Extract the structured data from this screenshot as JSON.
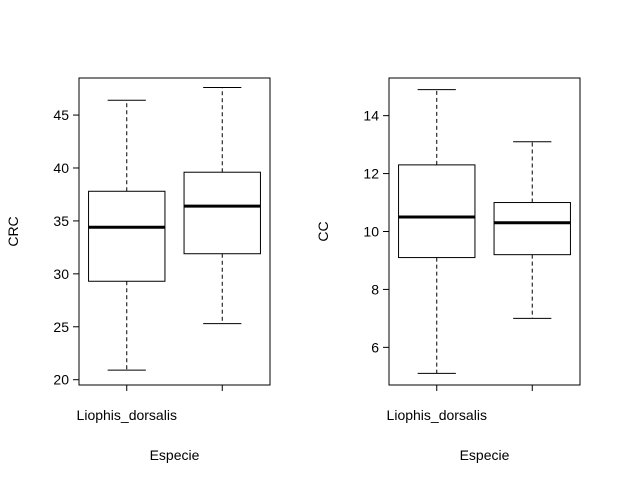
{
  "chart_data": [
    {
      "type": "boxplot",
      "ylabel": "CRC",
      "xlabel": "Especie",
      "ylim": [
        19.5,
        48.5
      ],
      "yticks": [
        20,
        25,
        30,
        35,
        40,
        45
      ],
      "categories": [
        "Liophis_dorsalis",
        ""
      ],
      "boxes": [
        {
          "label": "Liophis_dorsalis",
          "min": 20.9,
          "q1": 29.3,
          "median": 34.4,
          "q3": 37.8,
          "max": 46.4
        },
        {
          "label": "",
          "min": 25.3,
          "q1": 31.9,
          "median": 36.4,
          "q3": 39.6,
          "max": 47.6
        }
      ]
    },
    {
      "type": "boxplot",
      "ylabel": "CC",
      "xlabel": "Especie",
      "ylim": [
        4.7,
        15.3
      ],
      "yticks": [
        6,
        8,
        10,
        12,
        14
      ],
      "categories": [
        "Liophis_dorsalis",
        ""
      ],
      "boxes": [
        {
          "label": "Liophis_dorsalis",
          "min": 5.1,
          "q1": 9.1,
          "median": 10.5,
          "q3": 12.3,
          "max": 14.9
        },
        {
          "label": "",
          "min": 7.0,
          "q1": 9.2,
          "median": 10.3,
          "q3": 11.0,
          "max": 13.1
        }
      ]
    }
  ]
}
